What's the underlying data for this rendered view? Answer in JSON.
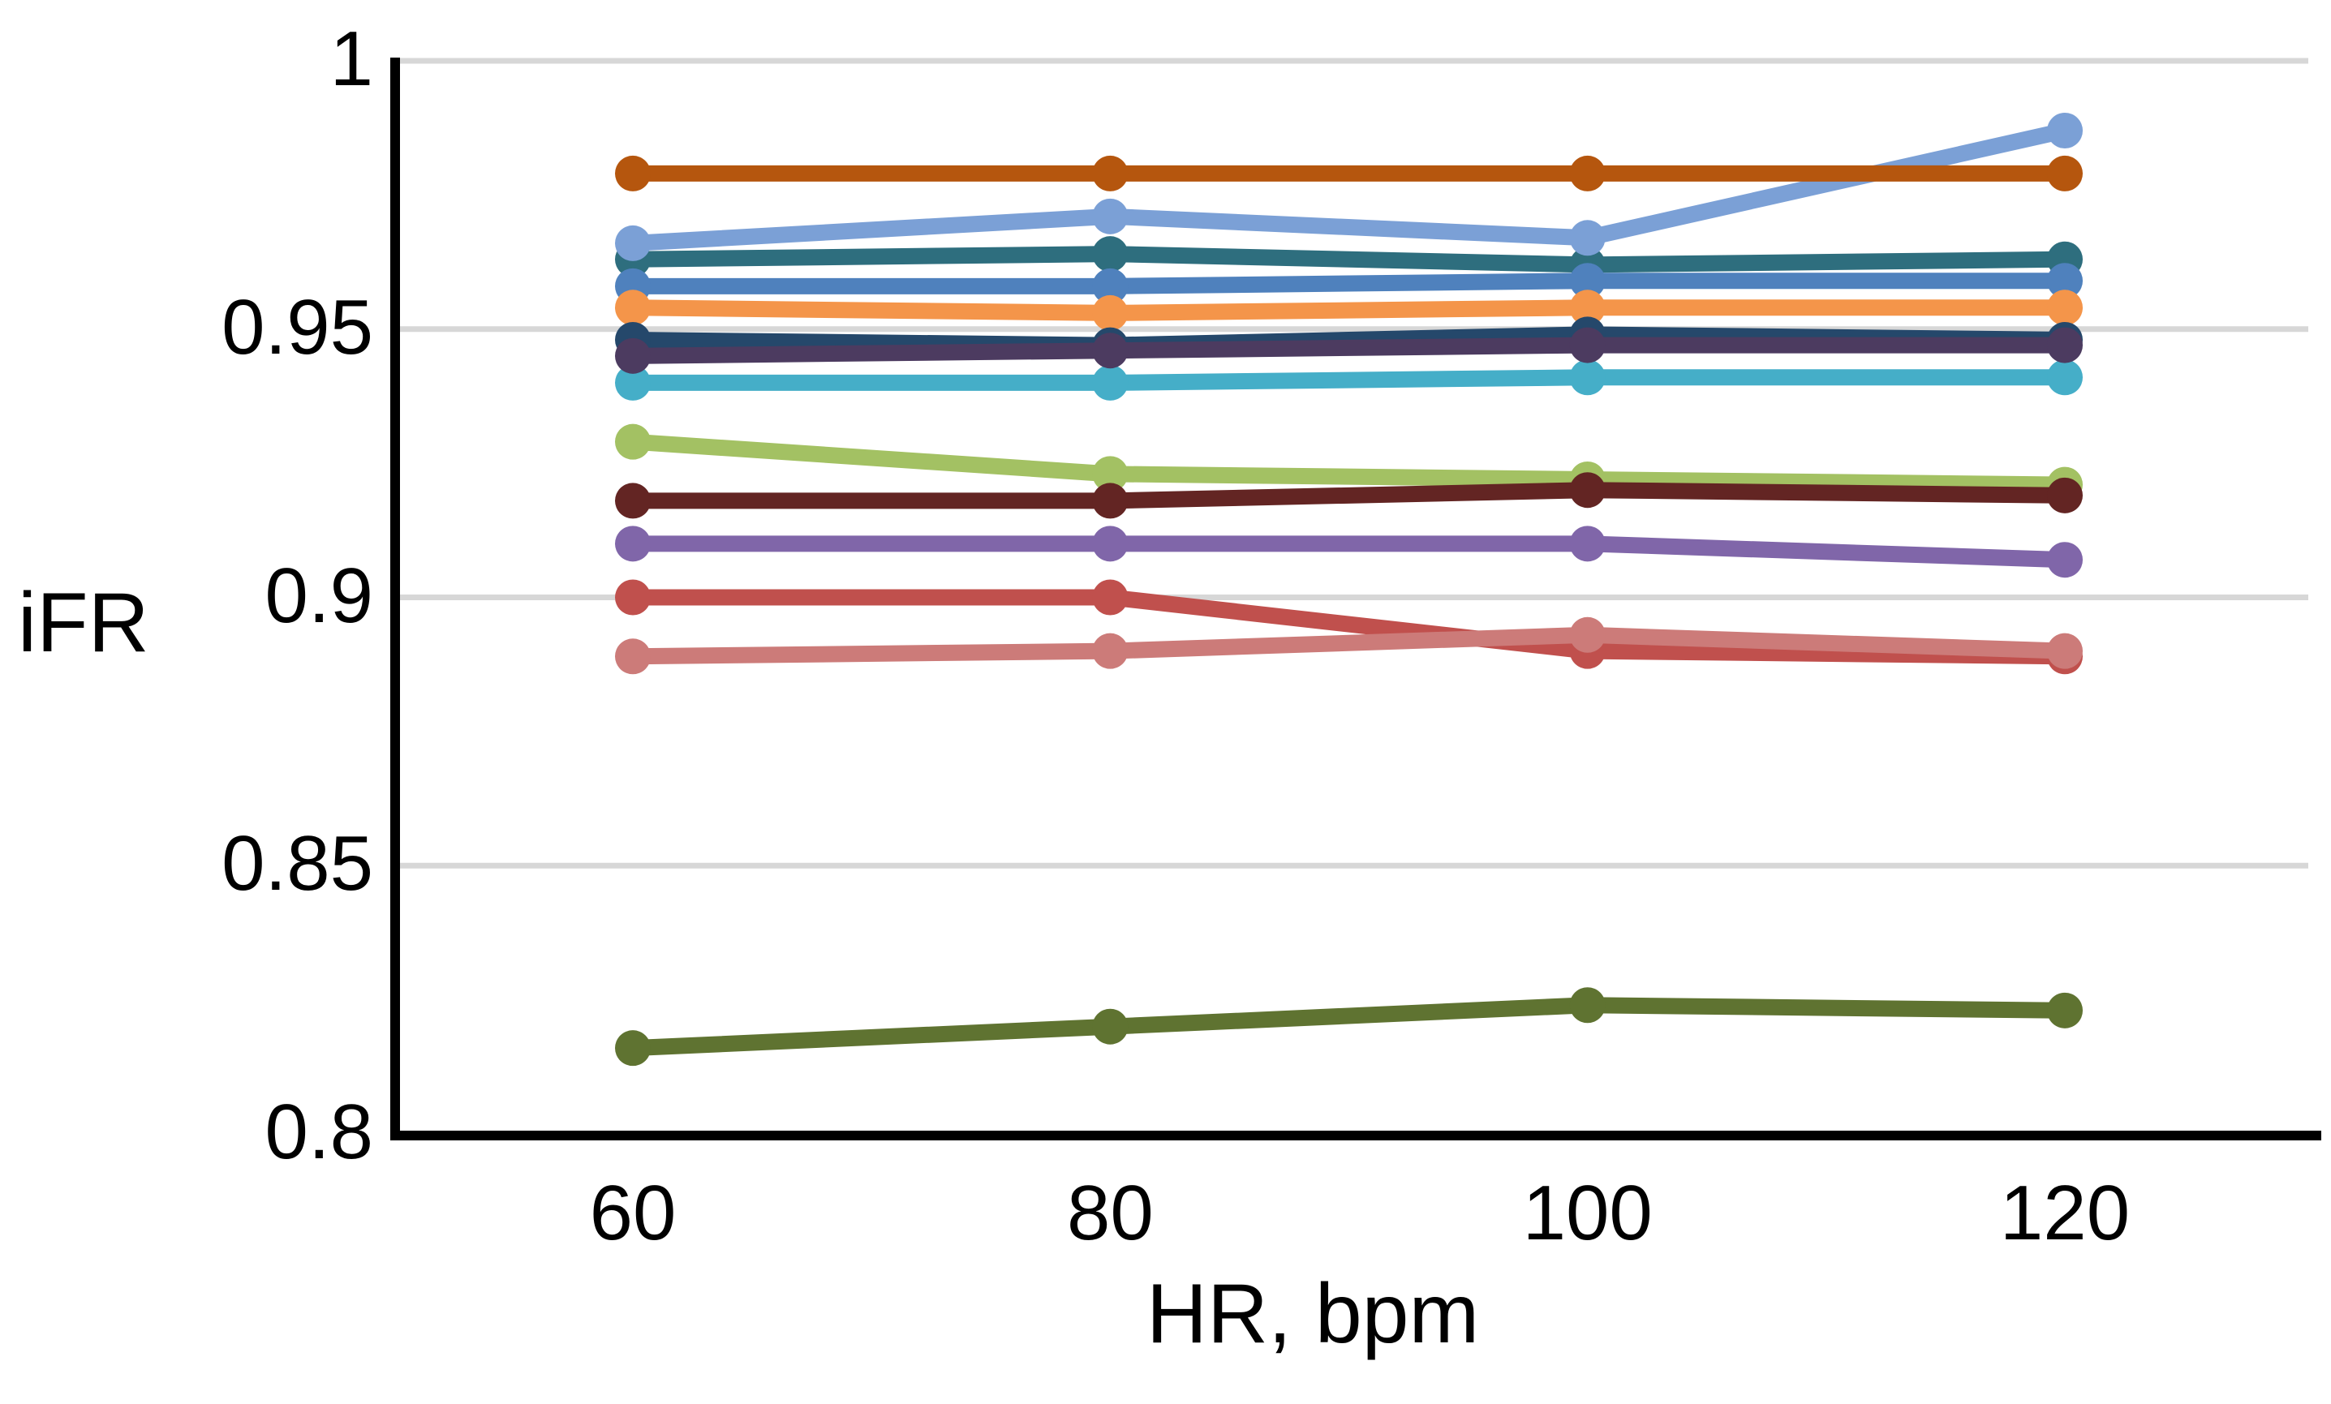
{
  "figure": {
    "y_axis_label": "iFR",
    "x_axis_label": "HR, bpm"
  },
  "colors": {
    "background": "#ffffff",
    "axis": "#000000",
    "gridline": "#d7d7d7",
    "text": "#000000"
  },
  "chart_data": {
    "type": "line",
    "title": "",
    "xlabel": "HR, bpm",
    "ylabel": "iFR",
    "x": [
      60,
      80,
      100,
      120
    ],
    "xtick_labels": [
      "60",
      "80",
      "100",
      "120"
    ],
    "ytick_values": [
      1,
      0.95,
      0.9,
      0.85,
      0.8
    ],
    "ytick_labels": [
      "1",
      "0.95",
      "0.9",
      "0.85",
      "0.8"
    ],
    "ylim": [
      0.8,
      1.0
    ],
    "xlim": [
      50,
      130
    ],
    "grid": "horizontal-only",
    "legend_position": "none",
    "marker": "circle",
    "series": [
      {
        "name": "dark-teal",
        "color": "#2E6E7E",
        "values": [
          0.963,
          0.964,
          0.962,
          0.963
        ]
      },
      {
        "name": "light-blue",
        "color": "#7BA0D6",
        "values": [
          0.966,
          0.971,
          0.967,
          0.987
        ]
      },
      {
        "name": "dark-orange",
        "color": "#B5560E",
        "values": [
          0.979,
          0.979,
          0.979,
          0.979
        ]
      },
      {
        "name": "medium-blue",
        "color": "#4F81BD",
        "values": [
          0.958,
          0.958,
          0.959,
          0.959
        ]
      },
      {
        "name": "orange",
        "color": "#F4954A",
        "values": [
          0.954,
          0.953,
          0.954,
          0.954
        ]
      },
      {
        "name": "navy",
        "color": "#25486B",
        "values": [
          0.948,
          0.947,
          0.949,
          0.948
        ]
      },
      {
        "name": "cyan",
        "color": "#45AEC8",
        "values": [
          0.94,
          0.94,
          0.941,
          0.941
        ]
      },
      {
        "name": "dark-purple",
        "color": "#4C3B60",
        "values": [
          0.945,
          0.946,
          0.947,
          0.947
        ]
      },
      {
        "name": "light-green",
        "color": "#A3C163",
        "values": [
          0.929,
          0.923,
          0.922,
          0.921
        ]
      },
      {
        "name": "maroon",
        "color": "#632523",
        "values": [
          0.918,
          0.918,
          0.92,
          0.919
        ]
      },
      {
        "name": "purple",
        "color": "#8066A9",
        "values": [
          0.91,
          0.91,
          0.91,
          0.907
        ]
      },
      {
        "name": "red",
        "color": "#C0504D",
        "values": [
          0.9,
          0.9,
          0.89,
          0.889
        ]
      },
      {
        "name": "salmon",
        "color": "#CC7B79",
        "values": [
          0.889,
          0.89,
          0.893,
          0.89
        ]
      },
      {
        "name": "olive-green",
        "color": "#5F7331",
        "values": [
          0.816,
          0.82,
          0.824,
          0.823
        ]
      }
    ]
  }
}
